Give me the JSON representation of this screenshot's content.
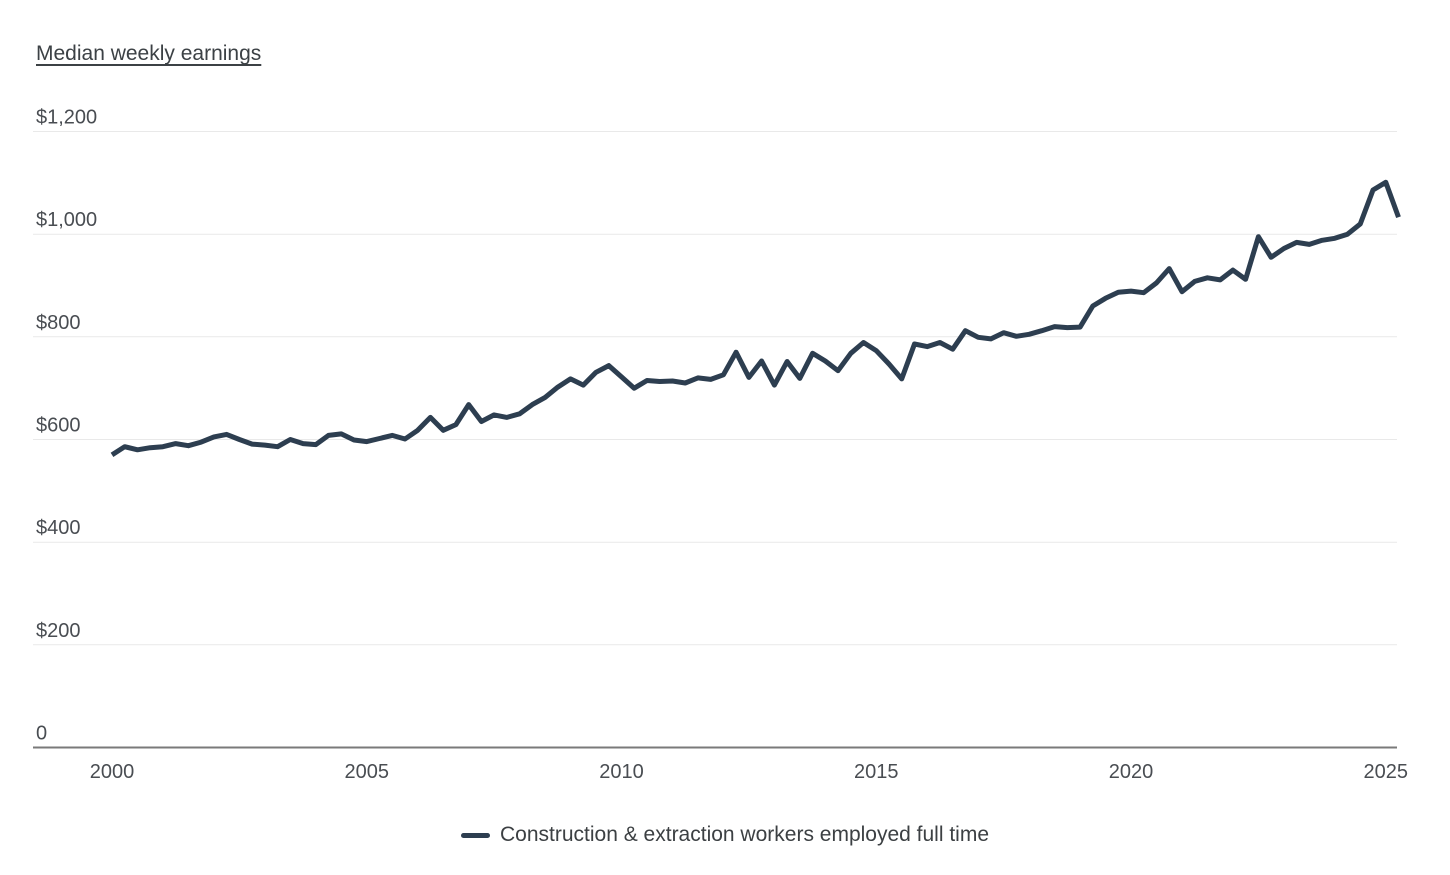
{
  "page": {
    "background_color": "#ffffff"
  },
  "chart": {
    "title": "Median weekly earnings",
    "legend": {
      "label": "Construction & extraction workers employed full time",
      "position": "bottom-center",
      "swatch": "line-swatch"
    },
    "colors": {
      "line": "#2d3e50",
      "grid": "#e9e9e9",
      "axis": "#7a7a7a",
      "tick_text": "#494d52",
      "title_text": "#3c4145",
      "legend_text": "#3c4043"
    }
  },
  "chart_data": {
    "type": "line",
    "title": "Median weekly earnings",
    "xlabel": "",
    "ylabel": "Median weekly earnings ($)",
    "x_unit": "year, quarterly data points",
    "x_start": 2000.0,
    "x_step": 0.25,
    "x_end": 2025.25,
    "xlim": [
      2000,
      2025.25
    ],
    "ylim": [
      0,
      1200
    ],
    "grid": "horizontal-only",
    "legend_position": "bottom",
    "x_ticks": [
      2000,
      2005,
      2010,
      2015,
      2020,
      2025
    ],
    "y_ticks": [
      {
        "value": 0,
        "label": "0"
      },
      {
        "value": 200,
        "label": "$200"
      },
      {
        "value": 400,
        "label": "$400"
      },
      {
        "value": 600,
        "label": "$600"
      },
      {
        "value": 800,
        "label": "$800"
      },
      {
        "value": 1000,
        "label": "$1,000"
      },
      {
        "value": 1200,
        "label": "$1,200"
      }
    ],
    "series": [
      {
        "name": "Construction & extraction workers employed full time",
        "values": [
          570,
          586,
          580,
          584,
          586,
          592,
          588,
          595,
          605,
          610,
          600,
          591,
          589,
          586,
          600,
          592,
          590,
          608,
          611,
          599,
          596,
          602,
          608,
          601,
          618,
          643,
          618,
          629,
          668,
          635,
          648,
          643,
          650,
          668,
          682,
          702,
          718,
          706,
          731,
          744,
          722,
          700,
          715,
          713,
          714,
          710,
          720,
          717,
          726,
          770,
          721,
          753,
          706,
          752,
          719,
          768,
          753,
          734,
          768,
          789,
          773,
          747,
          718,
          786,
          781,
          789,
          776,
          812,
          799,
          796,
          808,
          801,
          805,
          812,
          820,
          818,
          819,
          860,
          875,
          887,
          889,
          886,
          905,
          933,
          888,
          908,
          915,
          911,
          930,
          912,
          995,
          955,
          972,
          984,
          980,
          988,
          992,
          1000,
          1020,
          1086,
          1101,
          1033
        ]
      }
    ]
  }
}
